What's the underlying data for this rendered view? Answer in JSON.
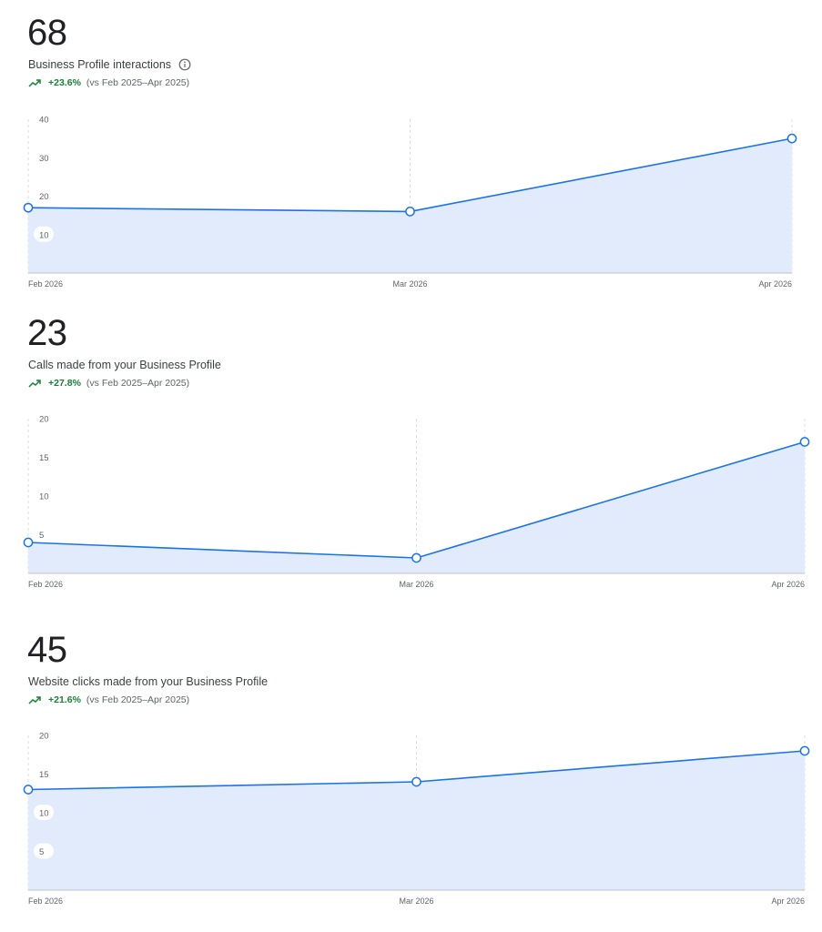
{
  "panels": [
    {
      "value": "68",
      "label": "Business Profile interactions",
      "change": "+23.6%",
      "comparison": "(vs Feb 2025–Apr 2025)"
    },
    {
      "value": "23",
      "label": "Calls made from your Business Profile",
      "change": "+27.8%",
      "comparison": "(vs Feb 2025–Apr 2025)"
    },
    {
      "value": "45",
      "label": "Website clicks made from your Business Profile",
      "change": "+21.6%",
      "comparison": "(vs Feb 2025–Apr 2025)"
    }
  ],
  "colors": {
    "line": "#1a73e8",
    "area": "#e1ebfb",
    "positive": "#188038"
  },
  "icons": {
    "trend": "trending-up-icon",
    "info": "info-icon"
  },
  "chart_data": [
    {
      "type": "area",
      "categories": [
        "Feb 2026",
        "Mar 2026",
        "Apr 2026"
      ],
      "series": [
        {
          "values": [
            17,
            16,
            35
          ]
        }
      ],
      "yticks": [
        "10",
        "20",
        "30",
        "40"
      ],
      "ylim": [
        0,
        40
      ],
      "grid": "vertical"
    },
    {
      "type": "area",
      "categories": [
        "Feb 2026",
        "Mar 2026",
        "Apr 2026"
      ],
      "series": [
        {
          "values": [
            4,
            2,
            17
          ]
        }
      ],
      "yticks": [
        "5",
        "10",
        "15",
        "20"
      ],
      "ylim": [
        0,
        20
      ],
      "grid": "vertical"
    },
    {
      "type": "area",
      "categories": [
        "Feb 2026",
        "Mar 2026",
        "Apr 2026"
      ],
      "series": [
        {
          "values": [
            13,
            14,
            18
          ]
        }
      ],
      "yticks": [
        "5",
        "10",
        "15",
        "20"
      ],
      "ylim": [
        0,
        20
      ],
      "grid": "vertical"
    }
  ]
}
